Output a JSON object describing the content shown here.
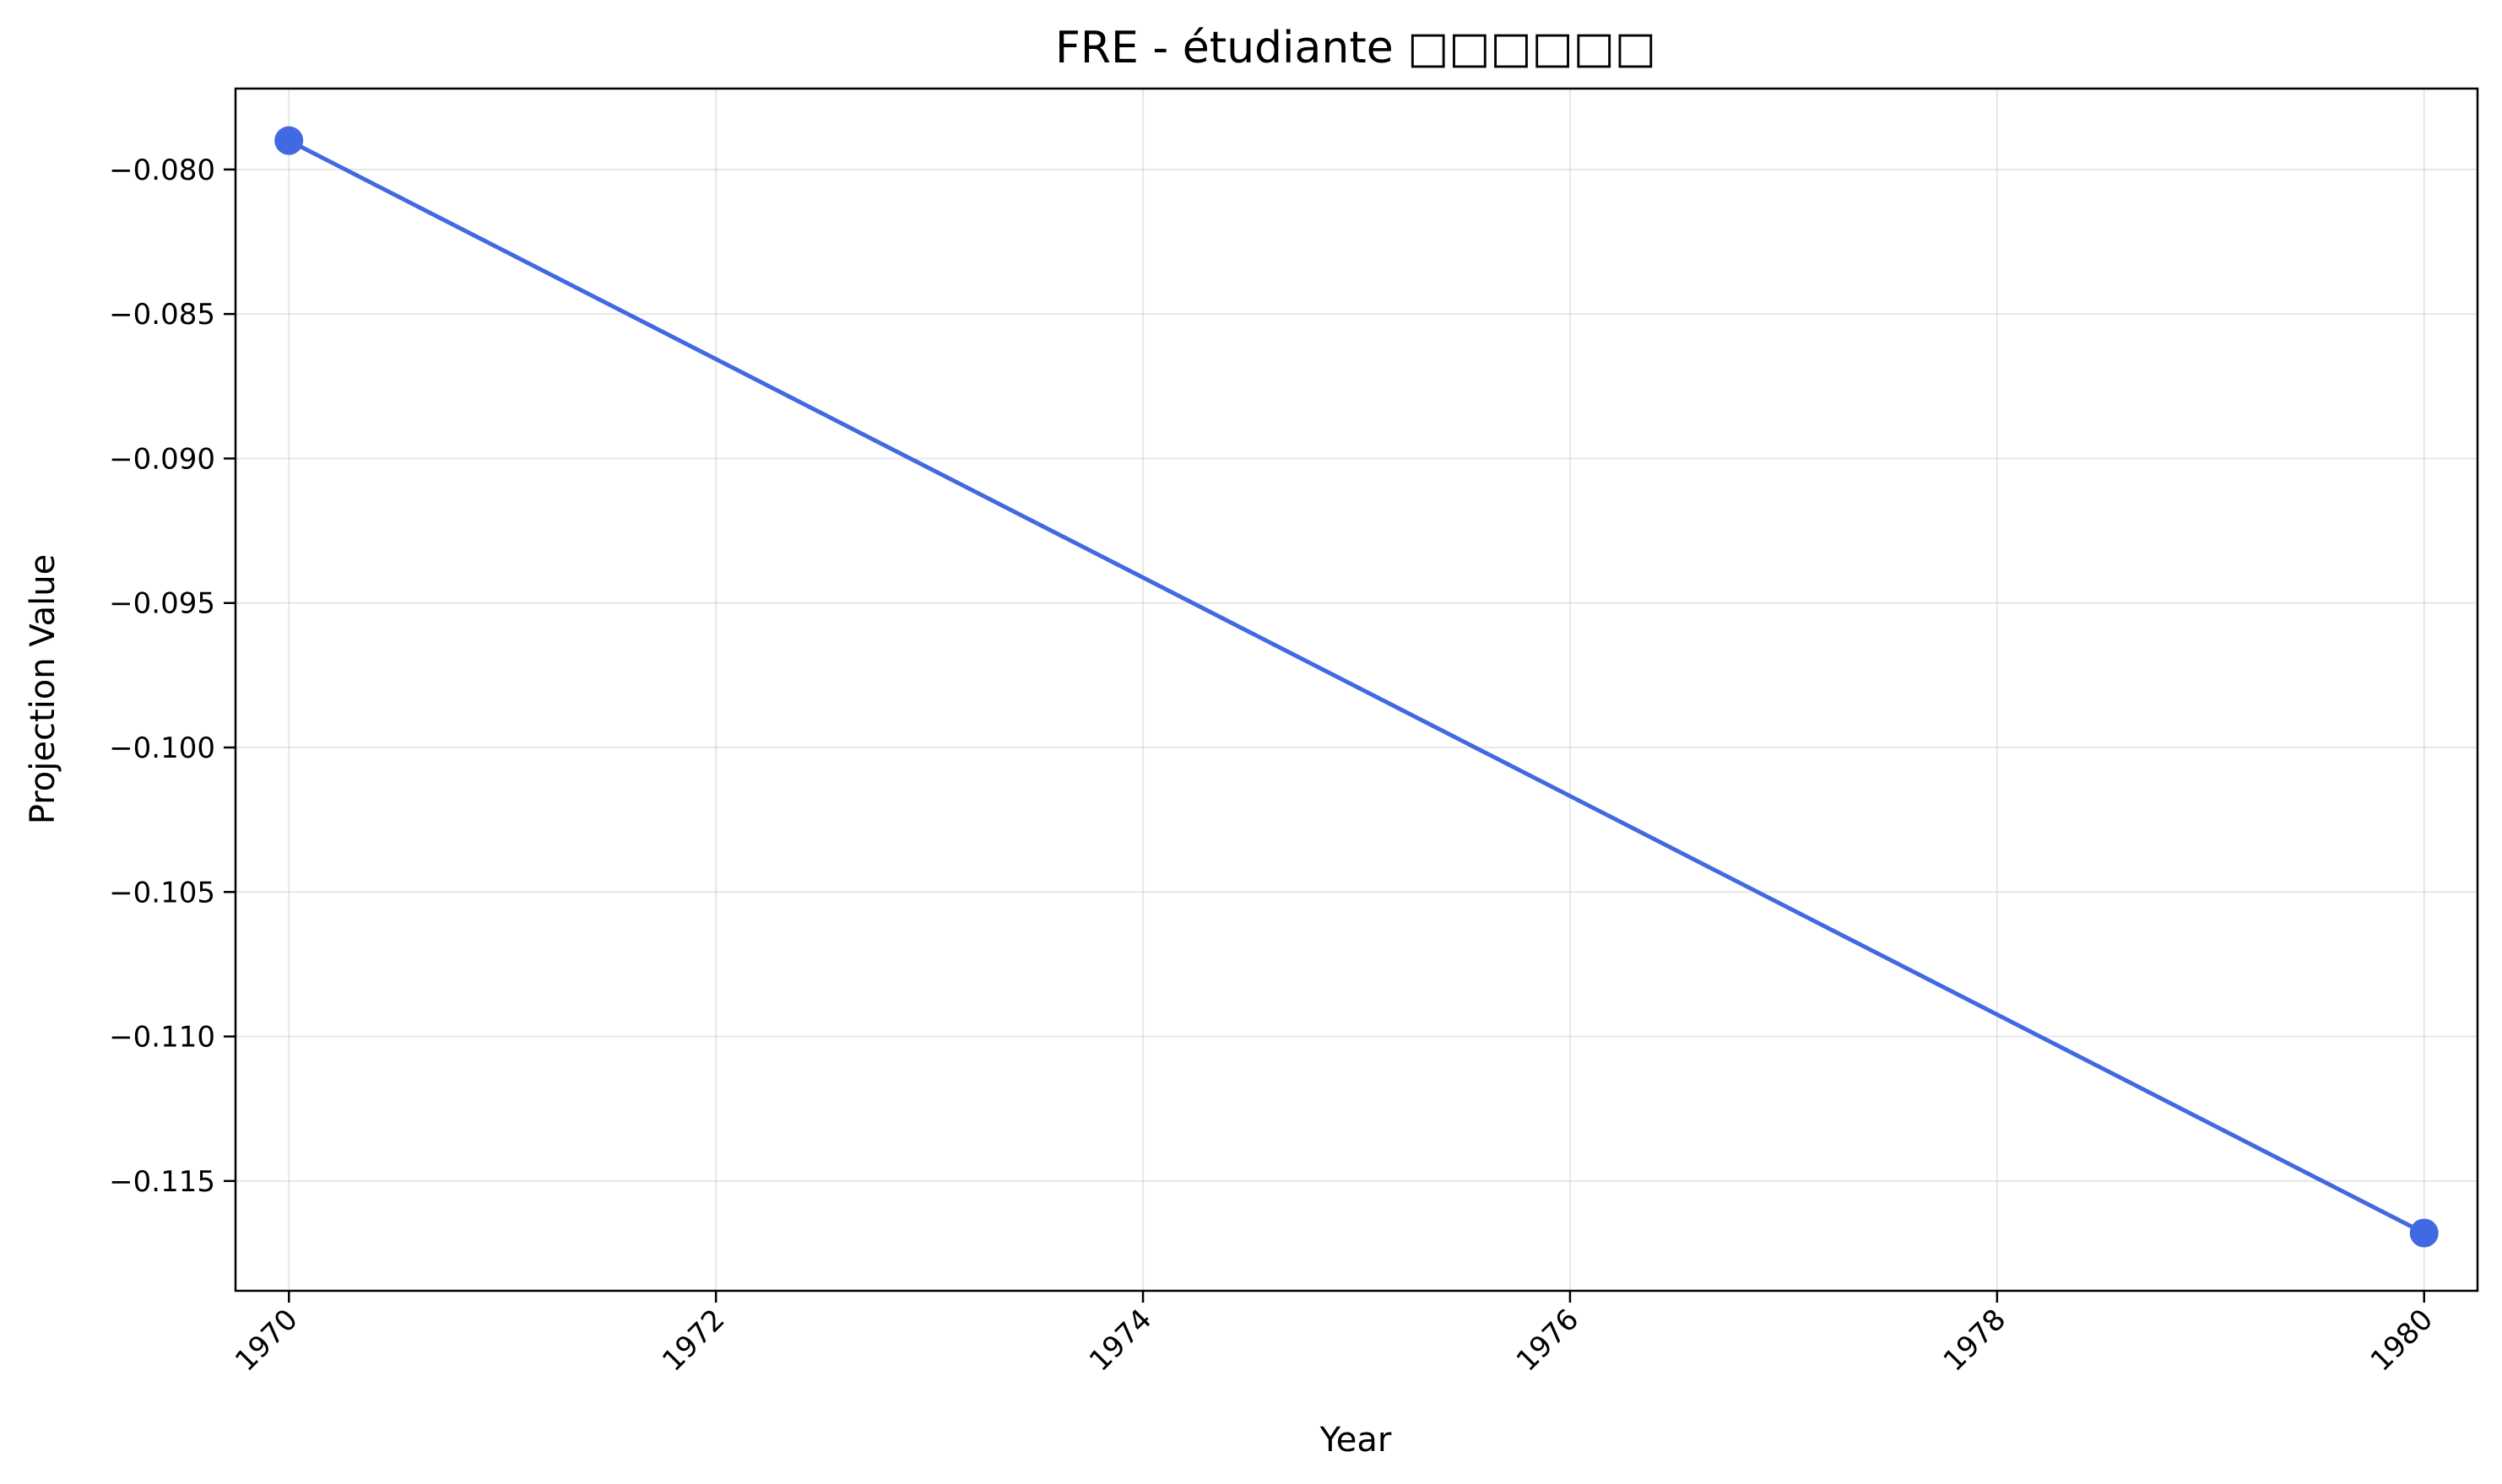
{
  "chart_data": {
    "type": "line",
    "title": "FRE - étudiante □□□□□□",
    "xlabel": "Year",
    "ylabel": "Projection Value",
    "xlim": [
      1969.75,
      1980.25
    ],
    "ylim": [
      -0.1188,
      -0.0772
    ],
    "x_ticks": [
      1970,
      1972,
      1974,
      1976,
      1978,
      1980
    ],
    "x_tick_labels": [
      "1970",
      "1972",
      "1974",
      "1976",
      "1978",
      "1980"
    ],
    "y_ticks": [
      -0.08,
      -0.085,
      -0.09,
      -0.095,
      -0.1,
      -0.105,
      -0.11,
      -0.115
    ],
    "y_tick_labels": [
      "−0.080",
      "−0.085",
      "−0.090",
      "−0.095",
      "−0.100",
      "−0.105",
      "−0.110",
      "−0.115"
    ],
    "grid": true,
    "legend": "none",
    "series": [
      {
        "color": "#4169e1",
        "marker": "circle",
        "x": [
          1970,
          1980
        ],
        "y": [
          -0.079,
          -0.1168
        ]
      }
    ]
  }
}
